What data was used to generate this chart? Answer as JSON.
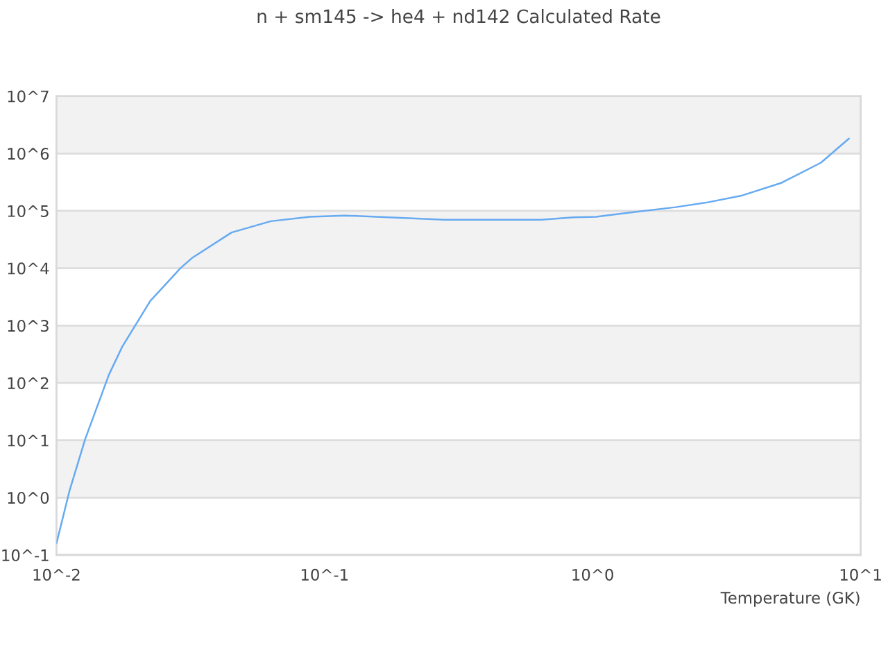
{
  "chart_data": {
    "type": "line",
    "title": "n + sm145 -> he4 + nd142 Calculated Rate",
    "xlabel": "Temperature (GK)",
    "x": [
      0.01,
      0.0112,
      0.0128,
      0.0157,
      0.0176,
      0.0224,
      0.029,
      0.032,
      0.045,
      0.063,
      0.088,
      0.119,
      0.173,
      0.279,
      0.643,
      0.85,
      1.03,
      1.37,
      2.04,
      2.69,
      3.62,
      5.07,
      7.11,
      9.04
    ],
    "series": [
      {
        "color": "#66aaf2",
        "values": [
          0.16,
          1.35,
          10.5,
          140,
          430,
          2700,
          10000,
          15000,
          42000,
          66000,
          79000,
          83000,
          77000,
          70000,
          70000,
          77000,
          79000,
          93000,
          116000,
          141000,
          186000,
          309000,
          692000,
          1820000
        ]
      }
    ],
    "log": "xy",
    "xlim": [
      0.01,
      10
    ],
    "ylim": [
      0.1,
      10000000
    ],
    "xticks": [
      {
        "value": 0.01,
        "label": "10^-2"
      },
      {
        "value": 0.1,
        "label": "10^-1"
      },
      {
        "value": 1,
        "label": "10^0"
      },
      {
        "value": 10,
        "label": "10^1"
      }
    ],
    "yticks": [
      {
        "value": 0.1,
        "label": "10^-1"
      },
      {
        "value": 1,
        "label": "10^0"
      },
      {
        "value": 10,
        "label": "10^1"
      },
      {
        "value": 100,
        "label": "10^2"
      },
      {
        "value": 1000,
        "label": "10^3"
      },
      {
        "value": 10000,
        "label": "10^4"
      },
      {
        "value": 100000,
        "label": "10^5"
      },
      {
        "value": 1000000,
        "label": "10^6"
      },
      {
        "value": 10000000,
        "label": "10^7"
      }
    ],
    "grid": "y",
    "line_style": "solid",
    "bands": [
      {
        "axis": "y",
        "from": 1,
        "to": 10,
        "color": "#f2f2f2"
      },
      {
        "axis": "y",
        "from": 100,
        "to": 1000,
        "color": "#f2f2f2"
      },
      {
        "axis": "y",
        "from": 10000,
        "to": 100000,
        "color": "#f2f2f2"
      },
      {
        "axis": "y",
        "from": 1000000,
        "to": 10000000,
        "color": "#f2f2f2"
      }
    ]
  }
}
